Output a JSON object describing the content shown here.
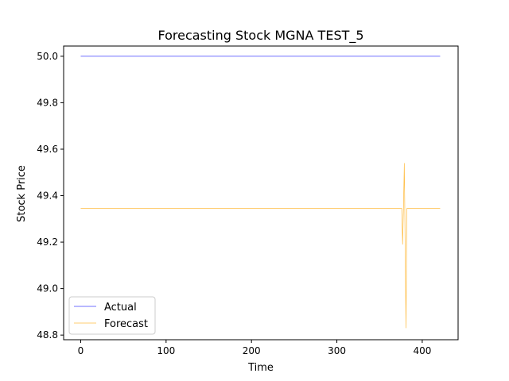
{
  "chart_data": {
    "type": "line",
    "title": "Forecasting Stock MGNA TEST_5",
    "xlabel": "Time",
    "ylabel": "Stock Price",
    "xlim": [
      -20,
      442
    ],
    "ylim": [
      48.78,
      50.044
    ],
    "x_ticks": [
      0,
      100,
      200,
      300,
      400
    ],
    "y_ticks": [
      48.8,
      49.0,
      49.2,
      49.4,
      49.6,
      49.8,
      50.0
    ],
    "x_tick_labels": [
      "0",
      "100",
      "200",
      "300",
      "400"
    ],
    "y_tick_labels": [
      "48.8",
      "49.0",
      "49.2",
      "49.4",
      "49.6",
      "49.8",
      "50.0"
    ],
    "grid": false,
    "legend_position": "lower-left",
    "series": [
      {
        "name": "Actual",
        "color": "#0000ff",
        "points": [
          [
            0,
            50.0
          ],
          [
            421,
            50.0
          ]
        ]
      },
      {
        "name": "Forecast",
        "color": "#ffa500",
        "points": [
          [
            0,
            49.345
          ],
          [
            376,
            49.345
          ],
          [
            377,
            49.19
          ],
          [
            378,
            49.345
          ],
          [
            379,
            49.54
          ],
          [
            380,
            49.18
          ],
          [
            381,
            48.83
          ],
          [
            382,
            49.345
          ],
          [
            421,
            49.345
          ]
        ]
      }
    ]
  }
}
